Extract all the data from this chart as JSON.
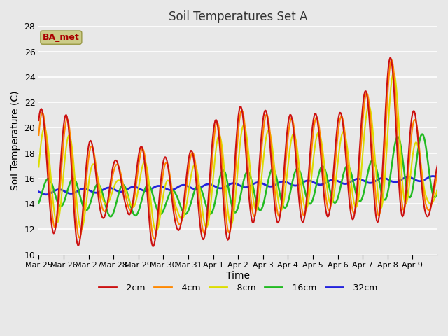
{
  "title": "Soil Temperatures Set A",
  "xlabel": "Time",
  "ylabel": "Soil Temperature (C)",
  "ylim": [
    10,
    28
  ],
  "yticks": [
    10,
    12,
    14,
    16,
    18,
    20,
    22,
    24,
    26,
    28
  ],
  "legend_label": "BA_met",
  "legend_text_color": "#aa0000",
  "legend_box_color": "#cccc88",
  "series_colors": {
    "-2cm": "#cc1111",
    "-4cm": "#ff8800",
    "-8cm": "#dddd00",
    "-16cm": "#22bb22",
    "-32cm": "#2222dd"
  },
  "x_labels": [
    "Mar 25",
    "Mar 26",
    "Mar 27",
    "Mar 28",
    "Mar 29",
    "Mar 30",
    "Mar 31",
    "Apr 1",
    "Apr 2",
    "Apr 3",
    "Apr 4",
    "Apr 5",
    "Apr 6",
    "Apr 7",
    "Apr 8",
    "Apr 9"
  ],
  "plot_bg_color": "#e8e8e8",
  "grid_color": "#ffffff",
  "figsize": [
    6.4,
    4.8
  ],
  "dpi": 100
}
